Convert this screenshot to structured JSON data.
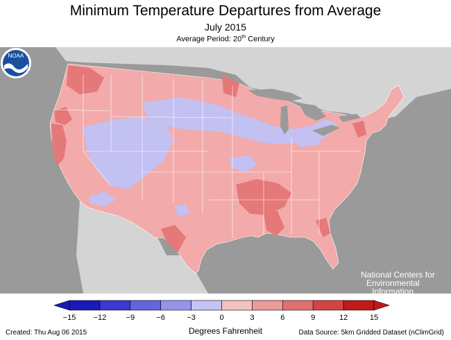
{
  "header": {
    "title": "Minimum Temperature Departures from Average",
    "subtitle": "July 2015",
    "period_prefix": "Average Period: 20",
    "period_sup": "th",
    "period_suffix": " Century"
  },
  "map": {
    "region": "Contiguous United States",
    "background_color": "#9a9a9a",
    "land_outside_color": "#d4d4d4",
    "lake_color": "#9a9a9a",
    "dominant_fill": "#f2aaaa",
    "cool_fill": "#c3c0f2",
    "warm_fill": "#e57878"
  },
  "logo": {
    "name": "NOAA",
    "lines": [
      "National Centers for",
      "Environmental",
      "Information"
    ]
  },
  "legend": {
    "units": "Degrees Fahrenheit",
    "ticks": [
      "−15",
      "−12",
      "−9",
      "−6",
      "−3",
      "0",
      "3",
      "6",
      "9",
      "12",
      "15"
    ],
    "colors": [
      "#1a1ab8",
      "#3a3ad0",
      "#6464e0",
      "#9494ec",
      "#c4c4f4",
      "#f4c2c2",
      "#ec9a9a",
      "#e07070",
      "#d44444",
      "#c01a1a"
    ]
  },
  "footer": {
    "created": "Created: Thu Aug 06 2015",
    "source": "Data Source: 5km Gridded Dataset (nClimGrid)"
  }
}
